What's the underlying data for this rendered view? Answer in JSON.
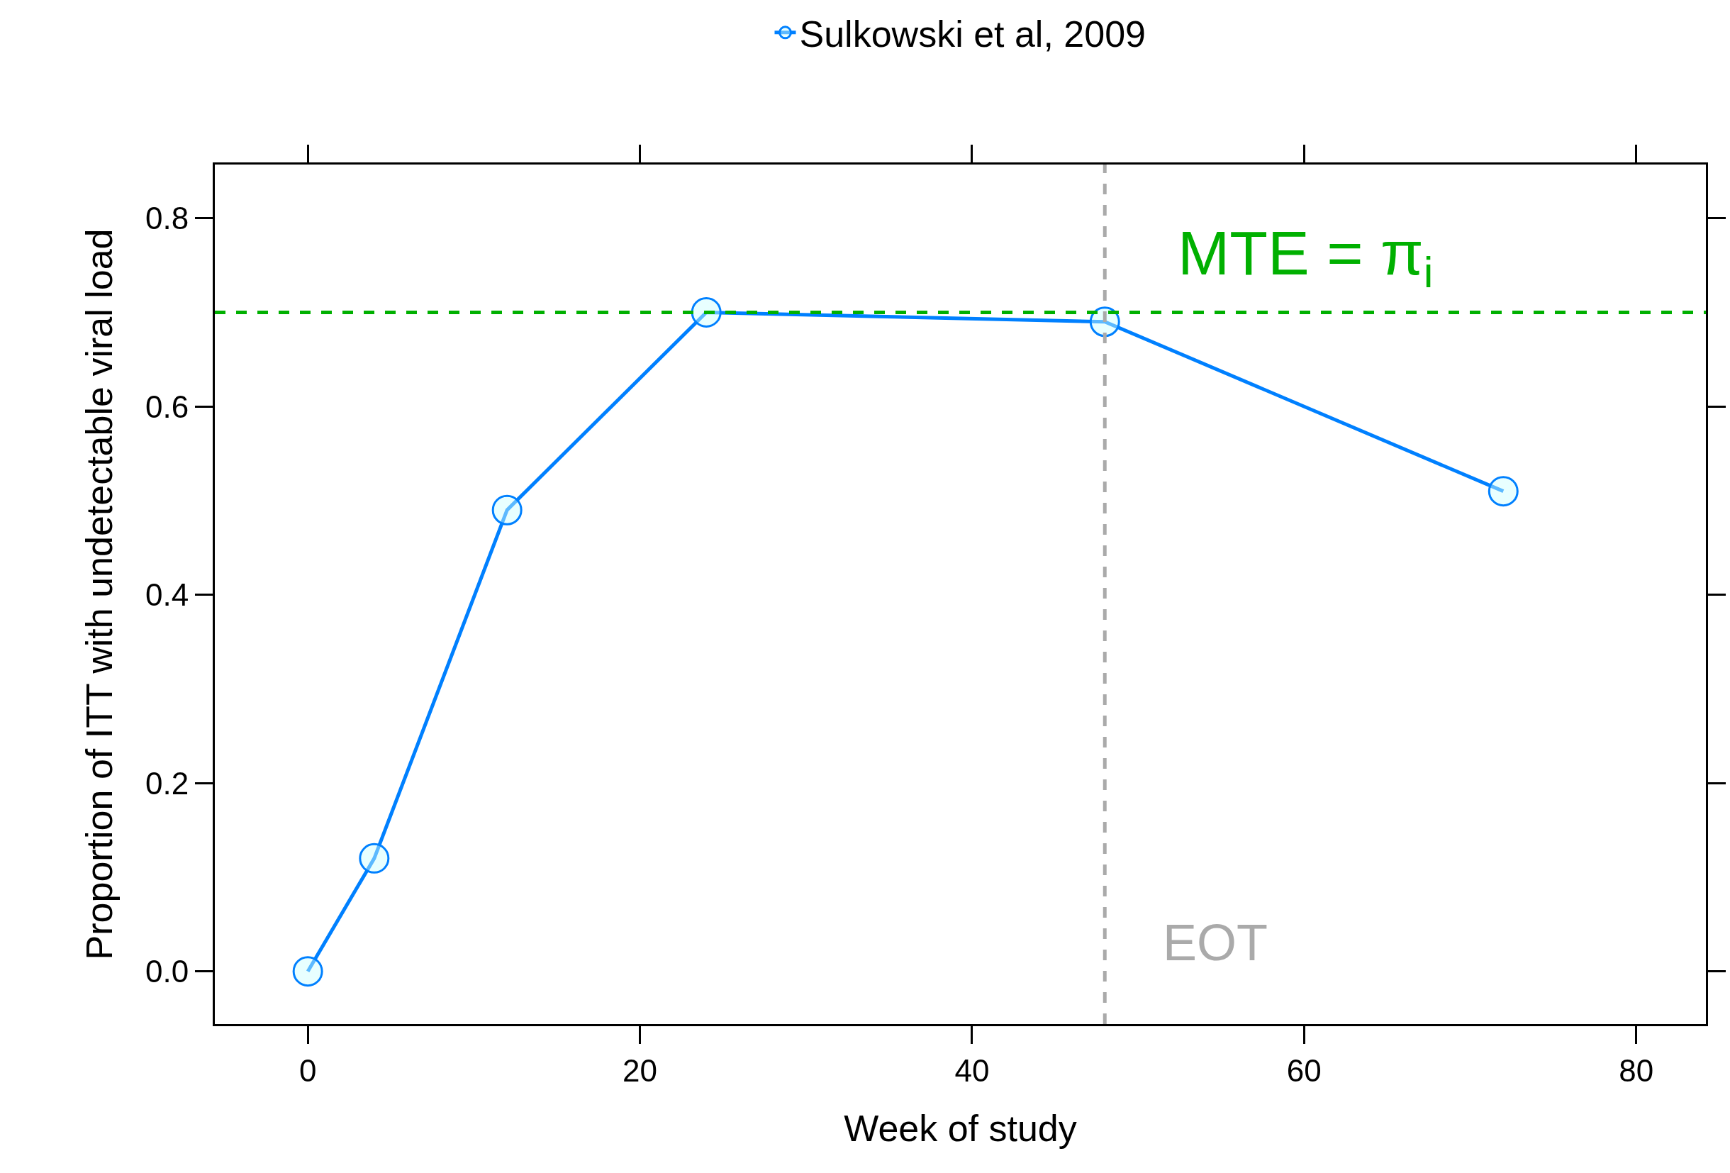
{
  "chart_data": {
    "type": "line",
    "xlabel": "Week of study",
    "ylabel": "Proportion of ITT with undetectable viral load",
    "x": [
      0,
      4,
      12,
      24,
      48,
      72
    ],
    "series": [
      {
        "name": "Sulkowski et al, 2009",
        "color": "#0080ff",
        "values": [
          0,
          0.12,
          0.49,
          0.7,
          0.69,
          0.51
        ]
      }
    ],
    "xlim": [
      -5.6,
      84.2
    ],
    "xticks": [
      0,
      20,
      40,
      60,
      80
    ],
    "ylim": [
      -0.056,
      0.857
    ],
    "yticks": [
      {
        "value": 0,
        "label": "0.0"
      },
      0.2,
      0.4,
      0.6,
      0.8
    ],
    "ref_lines": [
      {
        "axis": "y",
        "value": 0.7,
        "label": "MTE = π$_{i}$",
        "color": "#00b000",
        "line_style": "dashed"
      },
      {
        "axis": "x",
        "value": 48,
        "label": "EOT",
        "color": "#aaaaaa",
        "line_style": "dashed"
      }
    ],
    "legend": "top",
    "marker": "circle",
    "line_style": "solid"
  }
}
